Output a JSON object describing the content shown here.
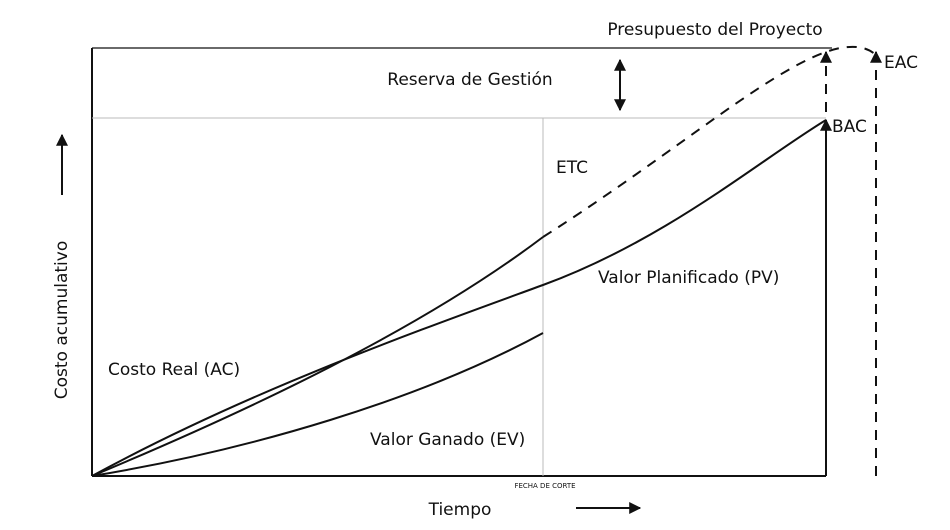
{
  "title": "Presupuesto del Proyecto",
  "reserve_label": "Reserva de Gestión",
  "eac_label": "EAC",
  "bac_label": "BAC",
  "etc_label": "ETC",
  "pv_label": "Valor Planificado (PV)",
  "ac_label": "Costo Real (AC)",
  "ev_label": "Valor Ganado (EV)",
  "cutoff_label": "FECHA DE CORTE",
  "x_axis_label": "Tiempo",
  "y_axis_label": "Costo acumulativo"
}
